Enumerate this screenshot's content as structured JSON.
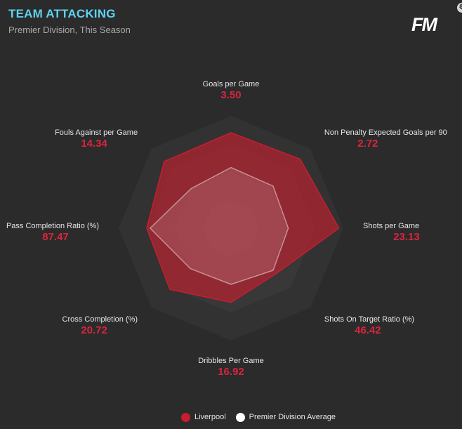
{
  "header": {
    "title": "TEAM ATTACKING",
    "subtitle": "Premier Division, This Season",
    "logo": "FM"
  },
  "icons": {
    "corner": "settings-icon"
  },
  "colors": {
    "team": "#c81e2f",
    "team_label": "#d7263d",
    "average": "#ffffff",
    "title": "#5fd3f0",
    "background": "#2b2b2b"
  },
  "chart_data": {
    "type": "radar",
    "axes": [
      "Goals per Game",
      "Non Penalty Expected Goals per 90",
      "Shots per Game",
      "Shots On Target Ratio (%)",
      "Dribbles Per Game",
      "Cross Completion (%)",
      "Pass Completion Ratio (%)",
      "Fouls Against per Game"
    ],
    "value_labels": [
      "3.50",
      "2.72",
      "23.13",
      "46.42",
      "16.92",
      "20.72",
      "87.47",
      "14.34"
    ],
    "series": [
      {
        "name": "Liverpool",
        "relative": [
          0.85,
          0.87,
          0.96,
          0.57,
          0.66,
          0.77,
          0.75,
          0.84
        ]
      },
      {
        "name": "Premier Division Average",
        "relative": [
          0.54,
          0.53,
          0.51,
          0.53,
          0.5,
          0.51,
          0.72,
          0.5
        ]
      }
    ],
    "rings": 4,
    "legend_position": "bottom"
  },
  "legend": {
    "team": "Liverpool",
    "average": "Premier Division Average"
  }
}
